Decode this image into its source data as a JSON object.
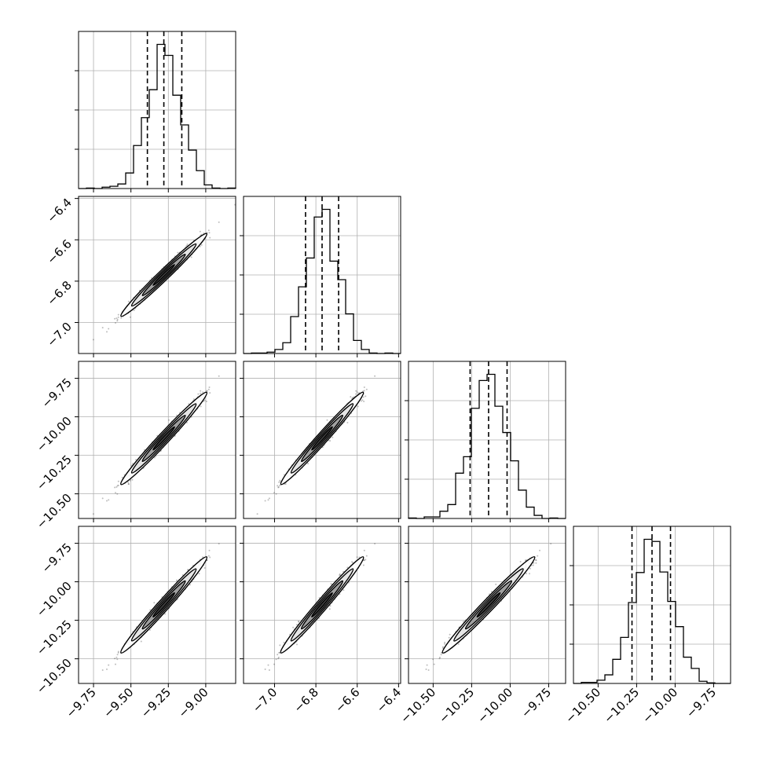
{
  "chart_data": {
    "type": "corner",
    "title": "",
    "parameters": [
      {
        "name": "",
        "median": -9.28,
        "q16": -9.39,
        "q84": -9.16,
        "sigma": 0.115,
        "axis_range": [
          -9.85,
          -8.8
        ],
        "ticks": [
          -9.75,
          -9.5,
          -9.25,
          -9.0
        ],
        "tick_labels": [
          "−9.75",
          "−9.50",
          "−9.25",
          "−9.00"
        ]
      },
      {
        "name": "",
        "median": -6.77,
        "q16": -6.85,
        "q84": -6.69,
        "sigma": 0.08,
        "axis_range": [
          -7.15,
          -6.39
        ],
        "ticks": [
          -7.0,
          -6.8,
          -6.6,
          -6.4
        ],
        "tick_labels": [
          "−7.0",
          "−6.8",
          "−6.6",
          "−6.4"
        ]
      },
      {
        "name": "",
        "median": -10.14,
        "q16": -10.26,
        "q84": -10.02,
        "sigma": 0.12,
        "axis_range": [
          -10.66,
          -9.64
        ],
        "ticks": [
          -10.5,
          -10.25,
          -10.0,
          -9.75
        ],
        "tick_labels": [
          "−10.50",
          "−10.25",
          "−10.00",
          "−9.75"
        ]
      },
      {
        "name": "",
        "median": -10.15,
        "q16": -10.28,
        "q84": -10.03,
        "sigma": 0.125,
        "axis_range": [
          -10.66,
          -9.64
        ],
        "ticks": [
          -10.5,
          -10.25,
          -10.0,
          -9.75
        ],
        "tick_labels": [
          "−10.50",
          "−10.25",
          "−10.00",
          "−9.75"
        ]
      }
    ],
    "pair_correlation": 0.985,
    "histogram_bins": 20,
    "contour_levels_sigma": [
      0.5,
      1.0,
      1.5,
      2.0
    ],
    "quantile_lines": [
      0.16,
      0.5,
      0.84
    ],
    "grid": true,
    "legend": "none",
    "colors": {
      "line": "#000000",
      "points": "#444444",
      "grid": "#b0b0b0"
    }
  }
}
